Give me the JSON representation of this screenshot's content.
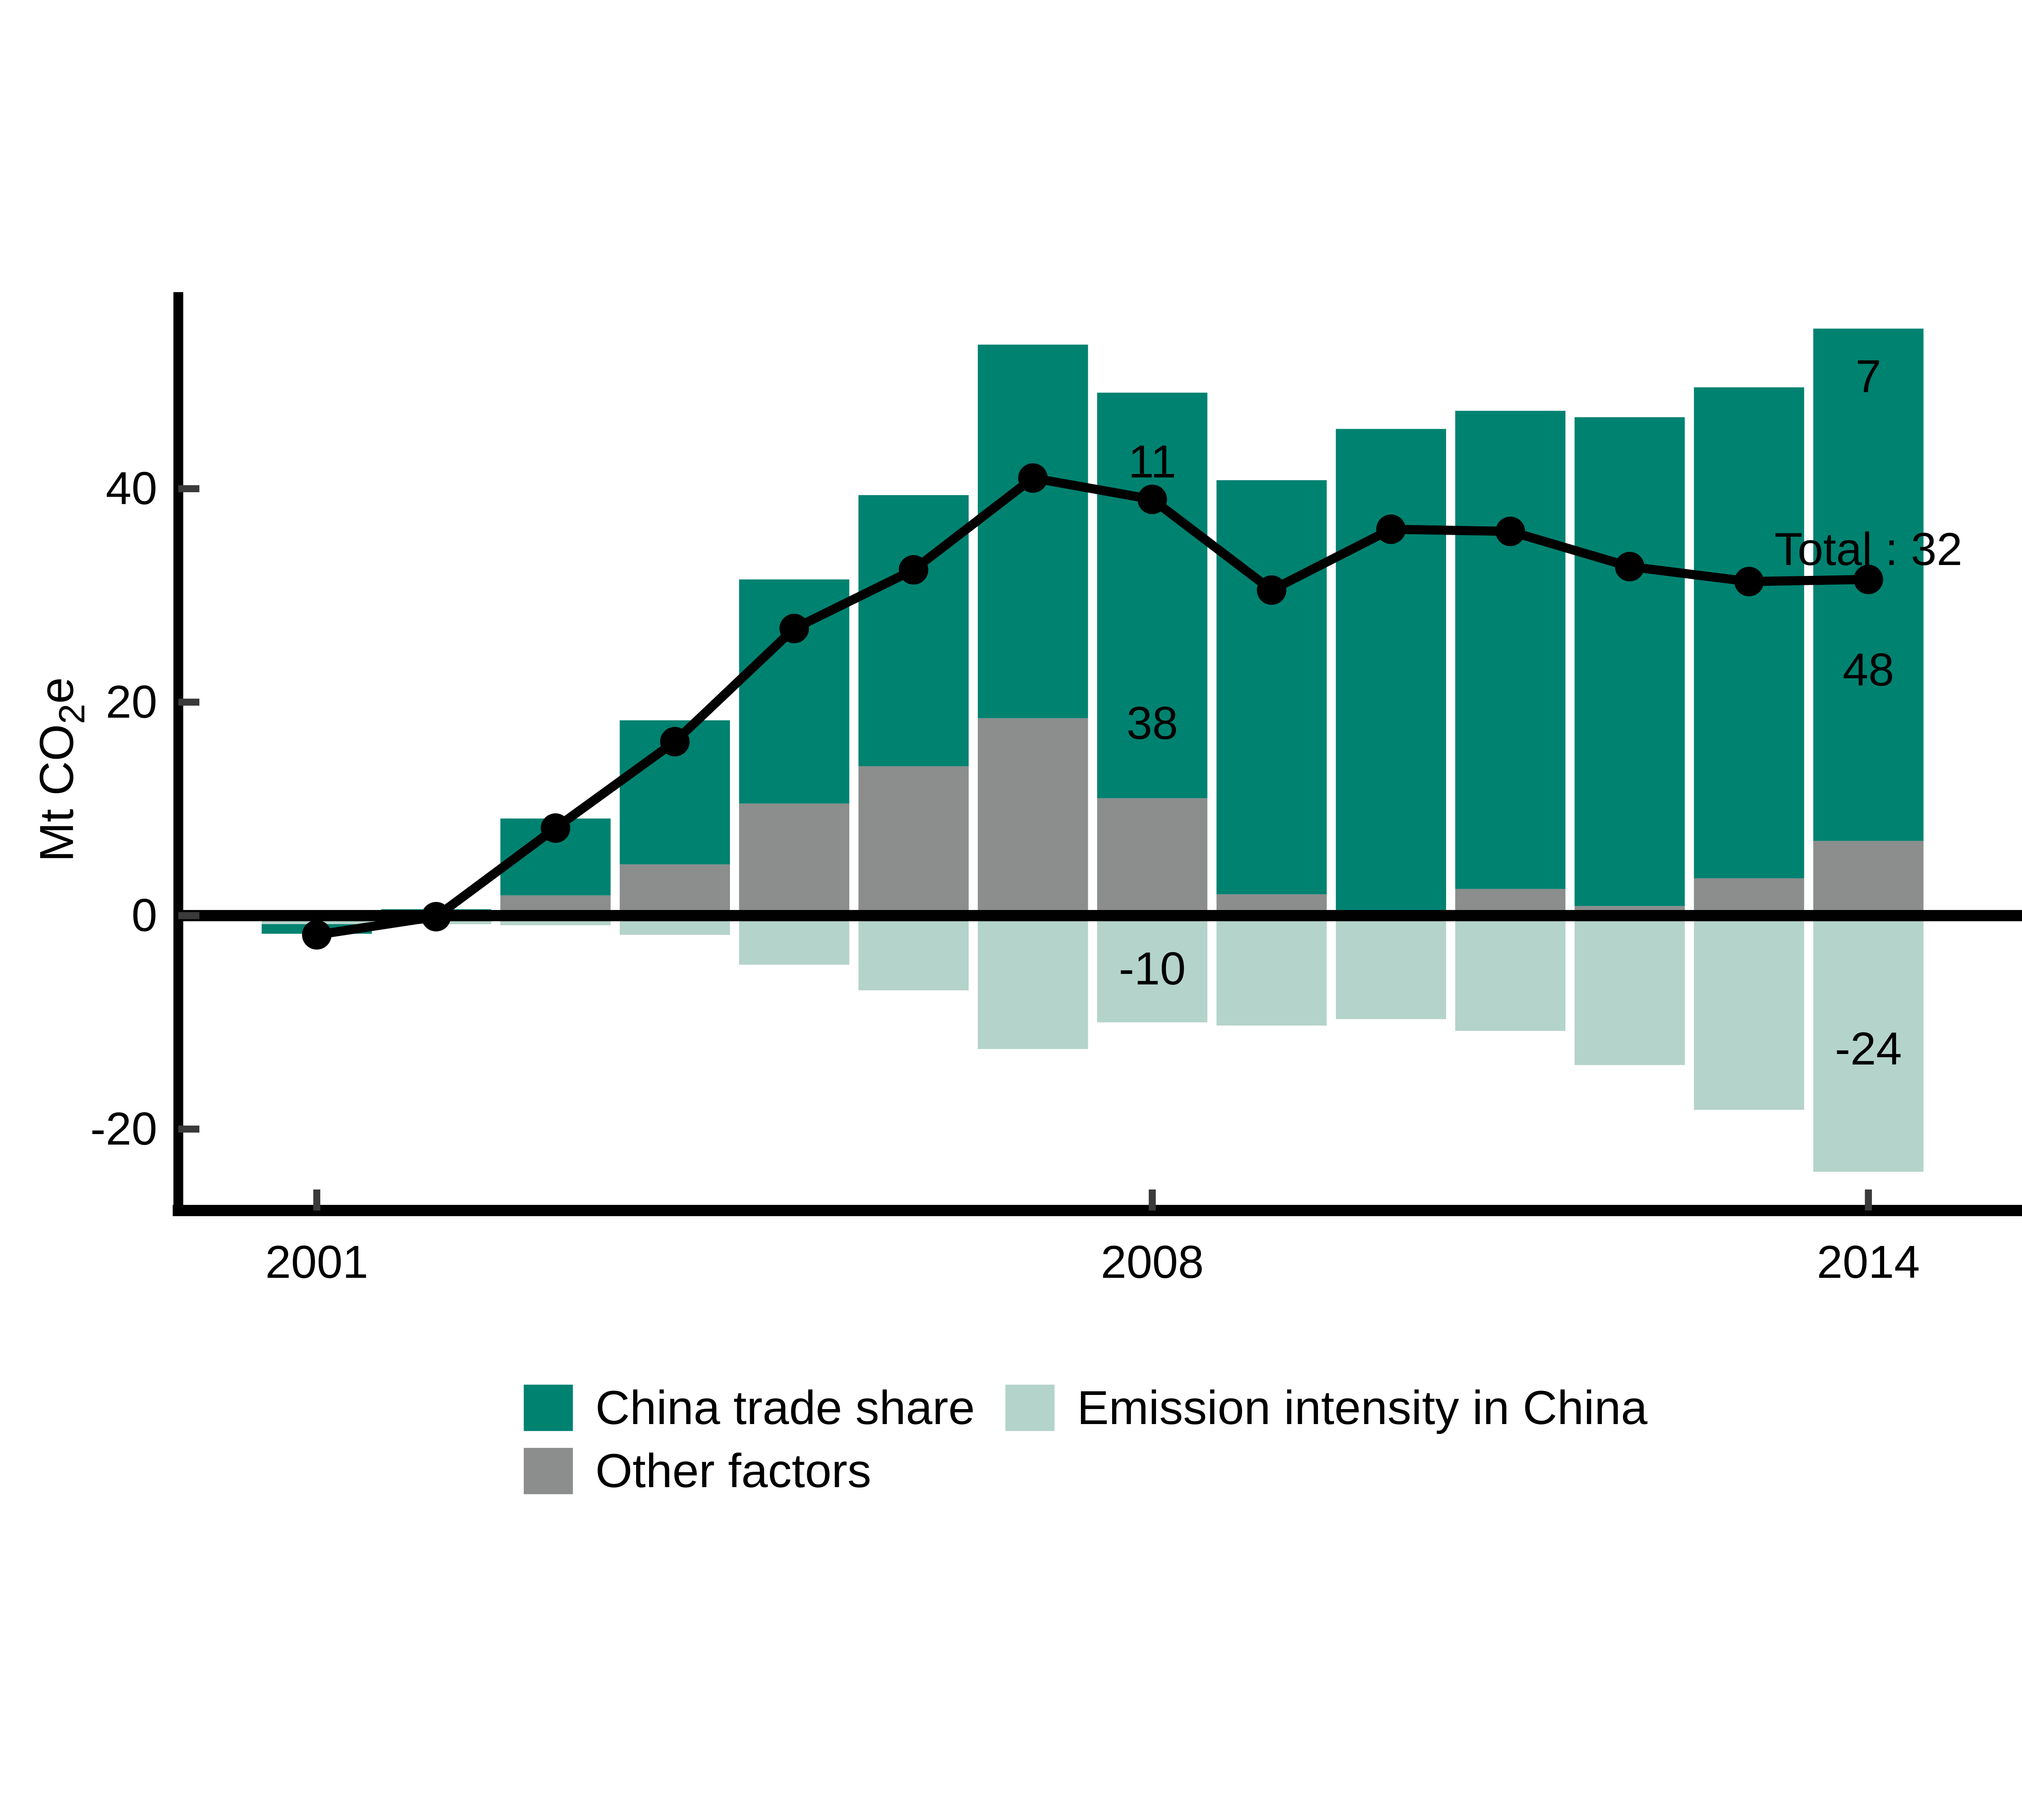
{
  "chart_data": {
    "type": "bar",
    "subtype": "stacked-bars-with-total-line",
    "title": "",
    "ylabel": {
      "prefix": "Mt CO",
      "sub": "2",
      "suffix": "e"
    },
    "categories": [
      2001,
      2002,
      2003,
      2004,
      2005,
      2006,
      2007,
      2008,
      2009,
      2010,
      2011,
      2012,
      2013,
      2014
    ],
    "series": [
      {
        "name": "China trade share",
        "color": "#008271",
        "values": [
          -0.9,
          0.6,
          7.2,
          13.5,
          21.0,
          25.4,
          35.0,
          38.0,
          38.8,
          45.3,
          44.8,
          45.8,
          46.0,
          48.0
        ]
      },
      {
        "name": "Emission intensity in China",
        "color": "#B4D3CA",
        "values": [
          -0.5,
          -0.8,
          -0.9,
          -1.8,
          -4.6,
          -7.0,
          -12.5,
          -10.0,
          -10.3,
          -9.7,
          -10.8,
          -14.0,
          -18.2,
          -24.0
        ]
      },
      {
        "name": "Other factors",
        "color": "#8B8E8D",
        "values": [
          -0.3,
          0.0,
          1.9,
          4.8,
          10.5,
          14.0,
          18.5,
          11.0,
          2.0,
          0.3,
          2.5,
          0.9,
          3.5,
          7.0
        ]
      }
    ],
    "line_series": {
      "name": "Total",
      "color": "#000000",
      "values": [
        -1.8,
        -0.1,
        8.2,
        16.3,
        26.9,
        32.4,
        41.0,
        39.0,
        30.5,
        36.2,
        36.0,
        32.7,
        31.3,
        31.5
      ]
    },
    "x_tick_labels": [
      "2001",
      "2008",
      "2014"
    ],
    "x_tick_years": [
      2001,
      2008,
      2014
    ],
    "y_tick_labels": [
      "-20",
      "0",
      "20",
      "40"
    ],
    "y_ticks": [
      -20,
      0,
      20,
      40
    ],
    "ylim": [
      -27.5,
      58
    ],
    "grid": false,
    "legend_position": "bottom",
    "axis_color": "#000000",
    "tick_color": "#3a3a3a",
    "annotations": [
      {
        "text": "11",
        "year": 2008,
        "value": 42.5
      },
      {
        "text": "38",
        "year": 2008,
        "value": 18.0
      },
      {
        "text": "-10",
        "year": 2008,
        "value": -5.0
      },
      {
        "text": "7",
        "year": 2014,
        "value": 50.5
      },
      {
        "text": "Total : 32",
        "year": 2014,
        "value": 34.3
      },
      {
        "text": "48",
        "year": 2014,
        "value": 23.0
      },
      {
        "text": "-24",
        "year": 2014,
        "value": -12.5
      }
    ]
  }
}
